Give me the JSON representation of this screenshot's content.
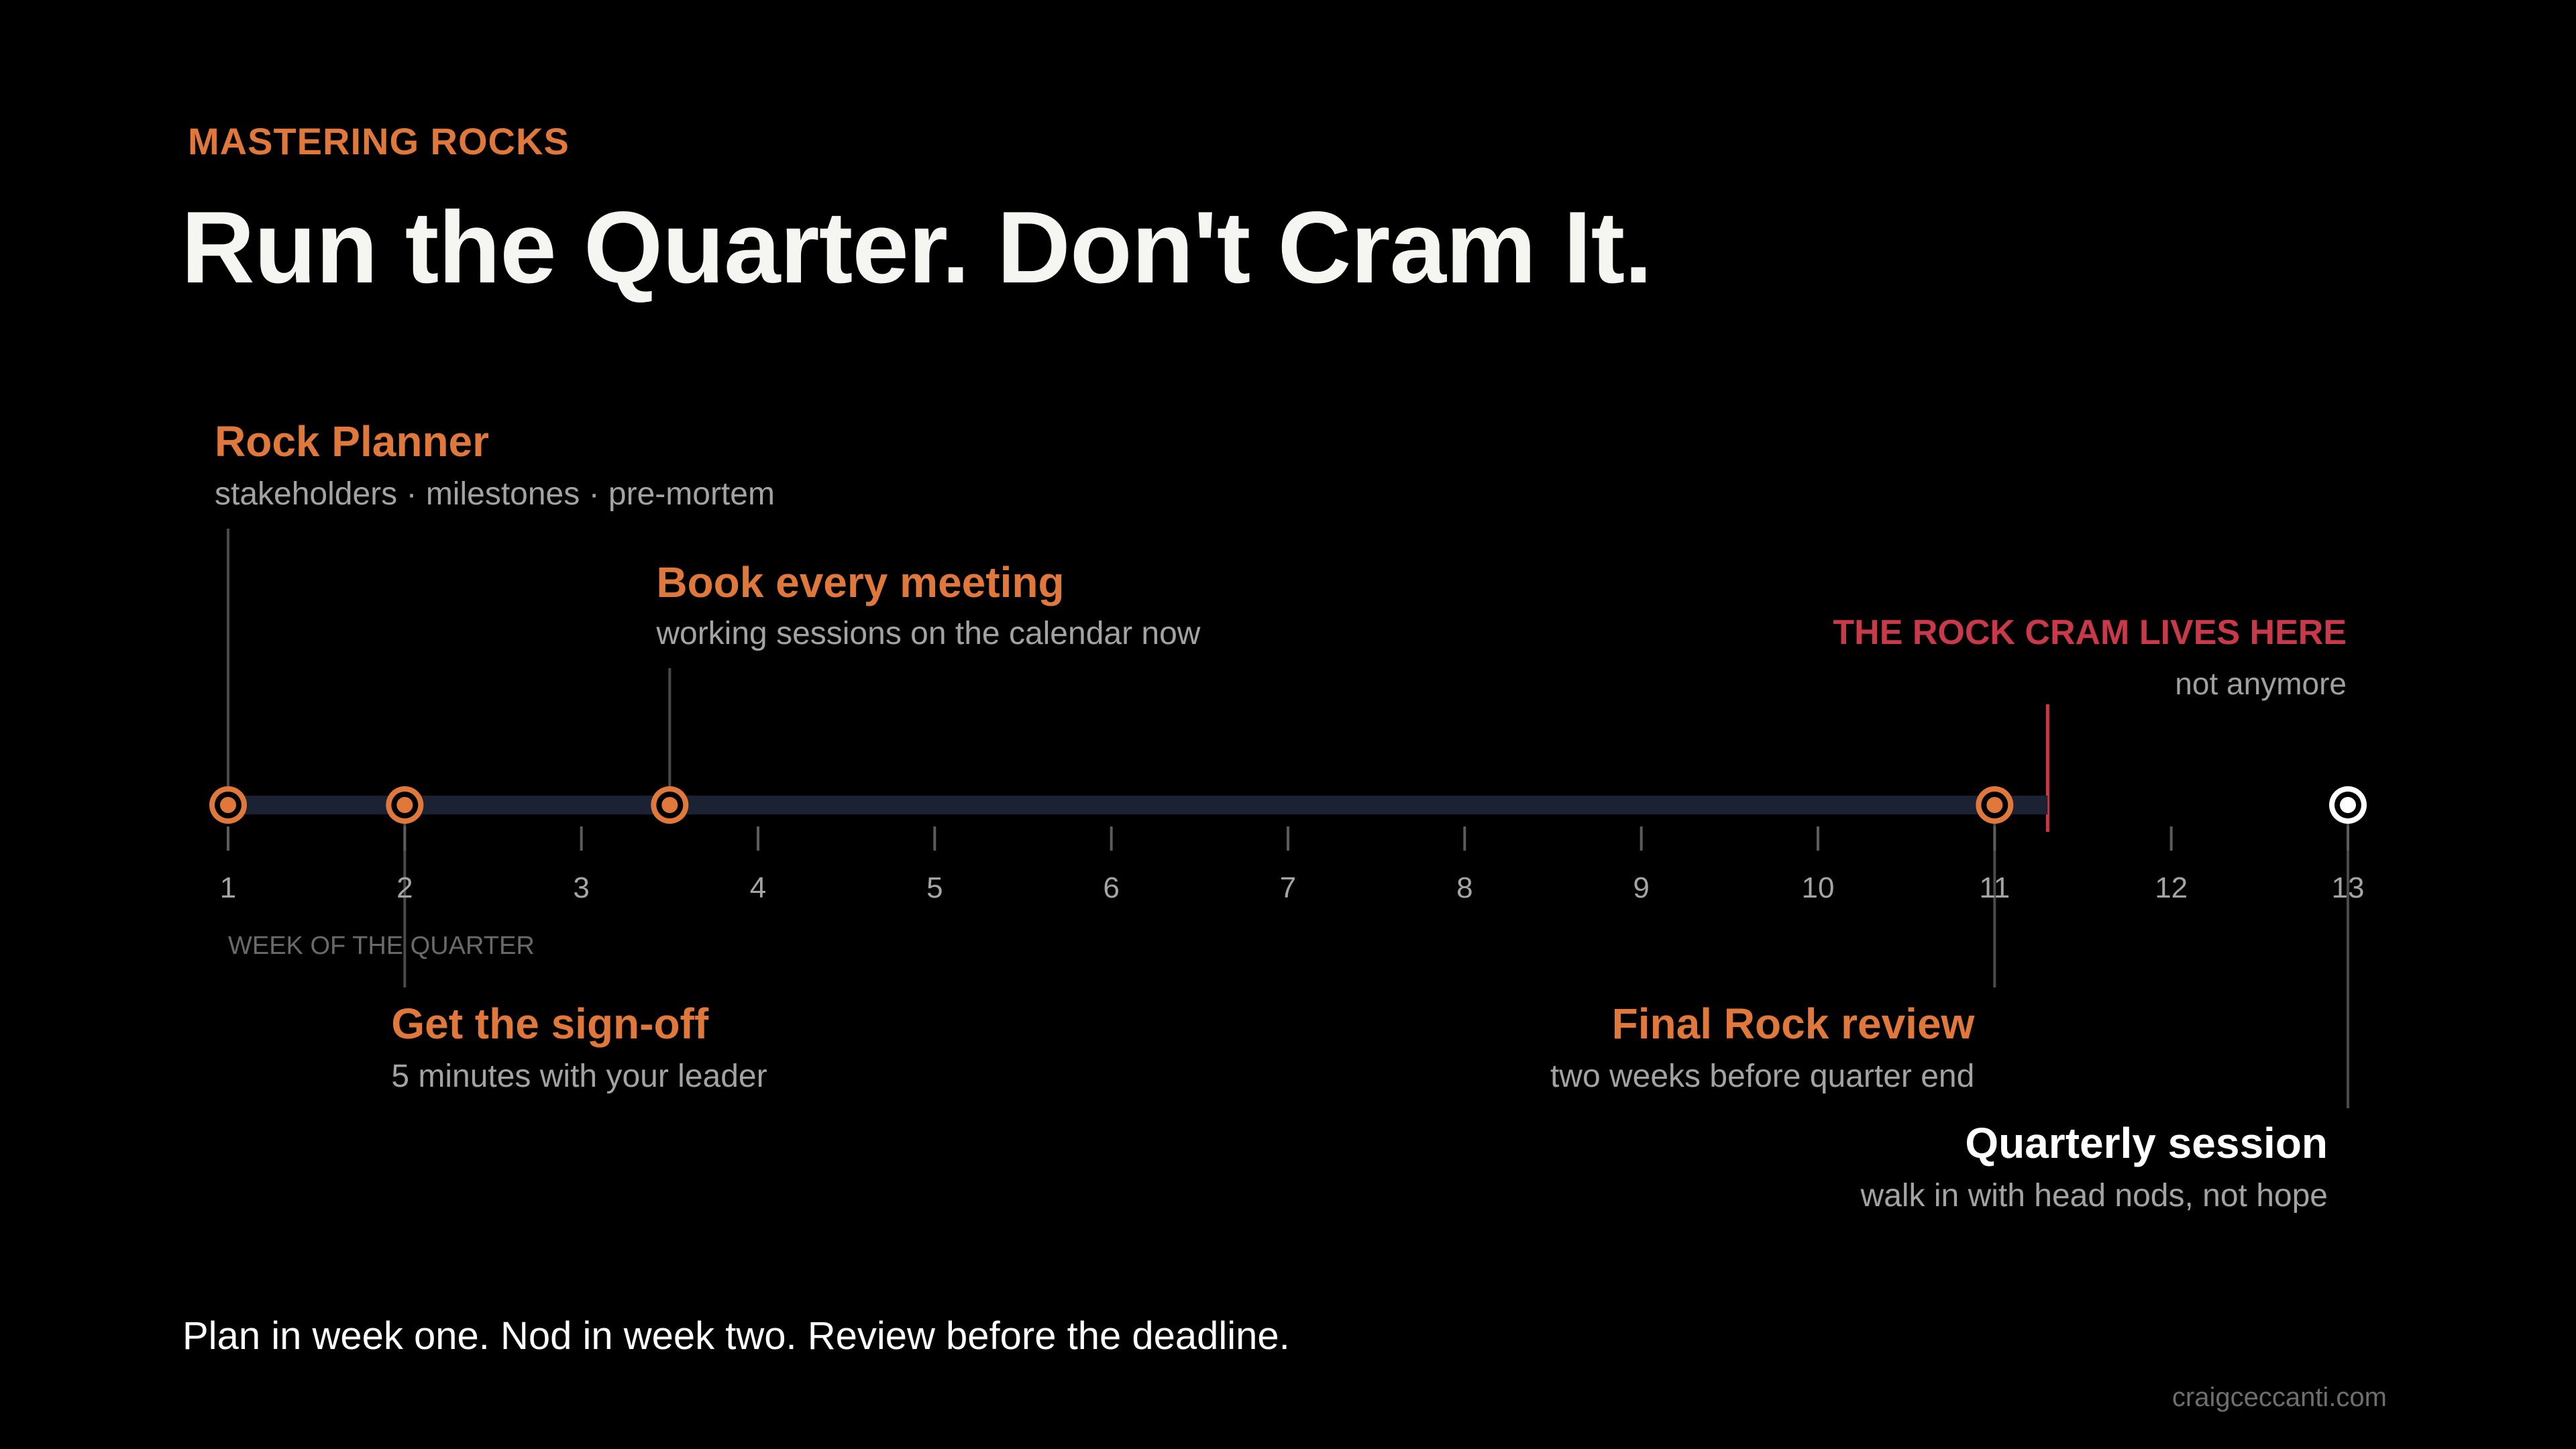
{
  "header": {
    "eyebrow": "MASTERING ROCKS",
    "title": "Run the Quarter. Don't Cram It."
  },
  "timeline": {
    "axis_label": "WEEK OF THE QUARTER",
    "week_start": 1,
    "week_end": 13,
    "week_labels": [
      "1",
      "2",
      "3",
      "4",
      "5",
      "6",
      "7",
      "8",
      "9",
      "10",
      "11",
      "12",
      "13"
    ],
    "milestones": [
      {
        "week": 1,
        "title": "Rock Planner",
        "subtitle": "stakeholders · milestones · pre-mortem",
        "position": "above-high",
        "align": "start",
        "style": "orange"
      },
      {
        "week": 2,
        "title": "Get the sign-off",
        "subtitle": "5 minutes with your leader",
        "position": "below",
        "align": "start",
        "style": "orange"
      },
      {
        "week": 3.5,
        "title": "Book every meeting",
        "subtitle": "working sessions on the calendar now",
        "position": "above-low",
        "align": "start",
        "style": "orange"
      },
      {
        "week": 11,
        "title": "Final Rock review",
        "subtitle": "two weeks before quarter end",
        "position": "below",
        "align": "end",
        "style": "orange"
      },
      {
        "week": 13,
        "title": "Quarterly session",
        "subtitle": "walk in with head nods, not hope",
        "position": "below-low",
        "align": "end",
        "style": "white"
      }
    ],
    "cram_zone": {
      "start_week": 11.3,
      "title": "THE ROCK CRAM LIVES HERE",
      "subtitle": "not anymore"
    }
  },
  "footer": {
    "tagline": "Plan in week one. Nod in week two. Review before the deadline.",
    "credit": "craigceccanti.com"
  },
  "colors": {
    "accent": "#e0783c",
    "cram": "#c8394a",
    "track": "#1a2233",
    "text_muted": "#9a9a9a",
    "background": "#000000"
  }
}
